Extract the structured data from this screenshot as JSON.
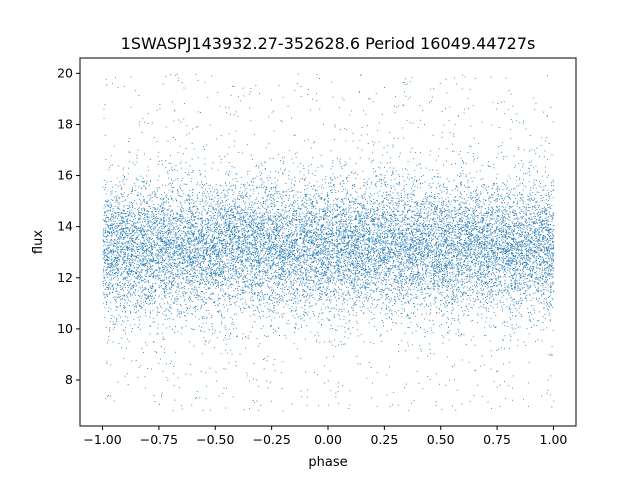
{
  "chart_data": {
    "type": "scatter",
    "title": "1SWASPJ143932.27-352628.6 Period 16049.44727s",
    "xlabel": "phase",
    "ylabel": "flux",
    "xlim": [
      -1.1,
      1.1
    ],
    "ylim": [
      6.2,
      20.6
    ],
    "xticks": [
      -1.0,
      -0.75,
      -0.5,
      -0.25,
      0.0,
      0.25,
      0.5,
      0.75,
      1.0
    ],
    "xtick_labels": [
      "−1.00",
      "−0.75",
      "−0.50",
      "−0.25",
      "0.00",
      "0.25",
      "0.50",
      "0.75",
      "1.00"
    ],
    "yticks": [
      8,
      10,
      12,
      14,
      16,
      18,
      20
    ],
    "ytick_labels": [
      "8",
      "10",
      "12",
      "14",
      "16",
      "18",
      "20"
    ],
    "grid": false,
    "point_color": "#1f77b4",
    "series": [
      {
        "x_range": [
          -1.0,
          1.0
        ],
        "y_center": 13.2,
        "y_spread": 1.3,
        "y_range": [
          6.8,
          20.0
        ],
        "points": [
          [
            -0.98,
            13.1
          ],
          [
            -0.9,
            12.4
          ],
          [
            -0.8,
            14.2
          ],
          [
            -0.7,
            13.5
          ],
          [
            -0.6,
            12.8
          ],
          [
            -0.5,
            13.9
          ],
          [
            -0.4,
            12.6
          ],
          [
            -0.3,
            14.4
          ],
          [
            -0.2,
            13.0
          ],
          [
            -0.1,
            12.2
          ],
          [
            0.0,
            13.6
          ],
          [
            0.1,
            14.0
          ],
          [
            0.2,
            12.9
          ],
          [
            0.3,
            13.4
          ],
          [
            0.4,
            11.8
          ],
          [
            0.5,
            14.7
          ],
          [
            0.6,
            13.2
          ],
          [
            0.7,
            12.5
          ],
          [
            0.8,
            13.8
          ],
          [
            0.9,
            12.1
          ],
          [
            0.98,
            13.3
          ],
          [
            -0.85,
            16.8
          ],
          [
            -0.45,
            9.6
          ],
          [
            0.15,
            17.9
          ],
          [
            0.65,
            8.4
          ],
          [
            -0.95,
            7.2
          ],
          [
            0.35,
            19.6
          ],
          [
            -0.25,
            18.5
          ],
          [
            0.85,
            10.1
          ],
          [
            -0.6,
            16.2
          ]
        ]
      }
    ]
  }
}
